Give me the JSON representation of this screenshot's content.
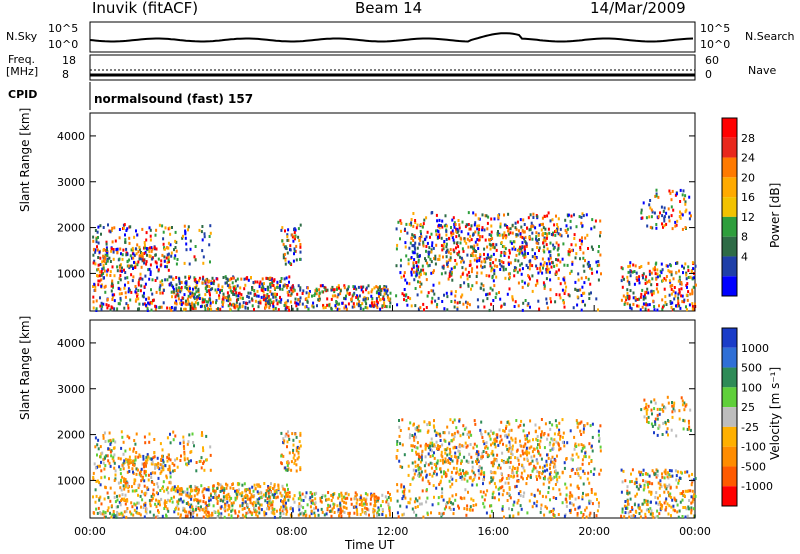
{
  "header": {
    "station": "Inuvik (fitACF)",
    "beam": "Beam 14",
    "date": "14/Mar/2009"
  },
  "top_panels": {
    "nsky_label": "N.Sky",
    "nsky_ticks": [
      "10^5",
      "10^0"
    ],
    "nsearch_label": "N.Search",
    "nsearch_ticks": [
      "10^5",
      "10^0"
    ],
    "freq_label": "Freq.",
    "freq_unit": "[MHz]",
    "freq_ticks": [
      "18",
      "8"
    ],
    "nave_label": "Nave",
    "nave_ticks": [
      "60",
      "0"
    ],
    "cpid_label": "CPID",
    "cpid_text": "normalsound (fast) 157"
  },
  "chart_data": [
    {
      "type": "heatmap",
      "ylabel": "Slant Range [km]",
      "xlabel": "",
      "ylim": [
        180,
        4500
      ],
      "yticks": [
        "4000",
        "3000",
        "2000",
        "1000"
      ],
      "colorbar_label": "Power [dB]",
      "colorbar_ticks": [
        "28",
        "24",
        "20",
        "16",
        "12",
        "8",
        "4"
      ],
      "colorbar_colors": [
        "#ff0000",
        "#e8281c",
        "#ff7a00",
        "#ffaa00",
        "#f2c200",
        "#2e9e3c",
        "#2e6b46",
        "#1f3fa8",
        "#0000ff"
      ]
    },
    {
      "type": "heatmap",
      "ylabel": "Slant Range [km]",
      "xlabel": "Time UT",
      "ylim": [
        180,
        4500
      ],
      "yticks": [
        "4000",
        "3000",
        "2000",
        "1000"
      ],
      "xticks": [
        "00:00",
        "04:00",
        "08:00",
        "12:00",
        "16:00",
        "20:00",
        "00:00"
      ],
      "colorbar_label": "Velocity [m s⁻¹]",
      "colorbar_ticks": [
        "1000",
        "500",
        "100",
        "25",
        "-25",
        "-100",
        "-500",
        "-1000"
      ],
      "colorbar_colors": [
        "#1a3cc8",
        "#2f6fd6",
        "#2e8b57",
        "#5fcf3a",
        "#bdbdbd",
        "#ffb000",
        "#ff8c00",
        "#ff5a00",
        "#ff0000"
      ]
    }
  ]
}
